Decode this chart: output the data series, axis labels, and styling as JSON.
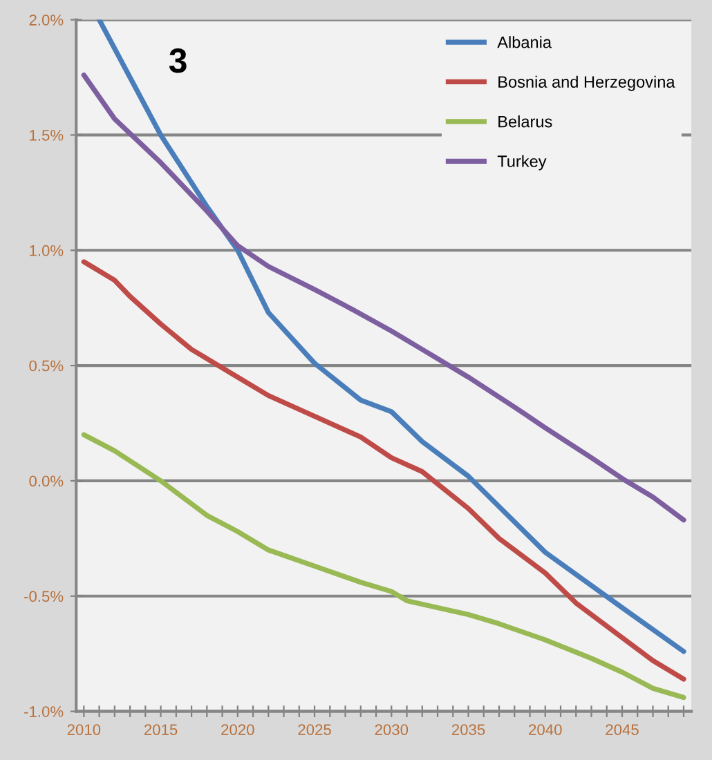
{
  "chart_data": {
    "type": "line",
    "annotations": [
      "3"
    ],
    "series": [
      {
        "name": "Albania",
        "color": "#4a7ebb",
        "x": [
          2011,
          2015,
          2018,
          2020,
          2022,
          2025,
          2028,
          2030,
          2032,
          2035,
          2040,
          2045,
          2049
        ],
        "values": [
          2.0,
          1.5,
          1.19,
          1.0,
          0.73,
          0.51,
          0.35,
          0.3,
          0.17,
          0.02,
          -0.31,
          -0.55,
          -0.74
        ]
      },
      {
        "name": "Bosnia and Herzegovina",
        "color": "#be4b48",
        "x": [
          2010,
          2012,
          2013,
          2015,
          2017,
          2020,
          2022,
          2025,
          2028,
          2030,
          2032,
          2035,
          2037,
          2040,
          2042,
          2045,
          2047,
          2049
        ],
        "values": [
          0.95,
          0.87,
          0.8,
          0.68,
          0.57,
          0.45,
          0.37,
          0.28,
          0.19,
          0.1,
          0.04,
          -0.12,
          -0.25,
          -0.4,
          -0.53,
          -0.68,
          -0.78,
          -0.86
        ]
      },
      {
        "name": "Belarus",
        "color": "#98b954",
        "x": [
          2010,
          2012,
          2015,
          2018,
          2020,
          2022,
          2025,
          2028,
          2030,
          2031,
          2035,
          2037,
          2040,
          2043,
          2045,
          2047,
          2049
        ],
        "values": [
          0.2,
          0.13,
          0.0,
          -0.15,
          -0.22,
          -0.3,
          -0.37,
          -0.44,
          -0.48,
          -0.52,
          -0.58,
          -0.62,
          -0.69,
          -0.77,
          -0.83,
          -0.9,
          -0.94
        ]
      },
      {
        "name": "Turkey",
        "color": "#7d5fa0",
        "x": [
          2010,
          2012,
          2015,
          2018,
          2020,
          2022,
          2025,
          2027,
          2030,
          2032,
          2035,
          2038,
          2040,
          2043,
          2045,
          2047,
          2049
        ],
        "values": [
          1.76,
          1.57,
          1.38,
          1.17,
          1.02,
          0.93,
          0.83,
          0.76,
          0.65,
          0.57,
          0.45,
          0.32,
          0.23,
          0.1,
          0.01,
          -0.07,
          -0.17
        ]
      }
    ],
    "xlim": [
      2009.5,
      2049.5
    ],
    "xticks": [
      2010,
      {
        "value": 2011,
        "label": null
      },
      {
        "value": 2012,
        "label": null
      },
      {
        "value": 2013,
        "label": null
      },
      {
        "value": 2014,
        "label": null
      },
      2015,
      {
        "value": 2016,
        "label": null
      },
      {
        "value": 2017,
        "label": null
      },
      {
        "value": 2018,
        "label": null
      },
      {
        "value": 2019,
        "label": null
      },
      2020,
      {
        "value": 2021,
        "label": null
      },
      {
        "value": 2022,
        "label": null
      },
      {
        "value": 2023,
        "label": null
      },
      {
        "value": 2024,
        "label": null
      },
      2025,
      {
        "value": 2026,
        "label": null
      },
      {
        "value": 2027,
        "label": null
      },
      {
        "value": 2028,
        "label": null
      },
      {
        "value": 2029,
        "label": null
      },
      2030,
      {
        "value": 2031,
        "label": null
      },
      {
        "value": 2032,
        "label": null
      },
      {
        "value": 2033,
        "label": null
      },
      {
        "value": 2034,
        "label": null
      },
      2035,
      {
        "value": 2036,
        "label": null
      },
      {
        "value": 2037,
        "label": null
      },
      {
        "value": 2038,
        "label": null
      },
      {
        "value": 2039,
        "label": null
      },
      2040,
      {
        "value": 2041,
        "label": null
      },
      {
        "value": 2042,
        "label": null
      },
      {
        "value": 2043,
        "label": null
      },
      {
        "value": 2044,
        "label": null
      },
      2045,
      {
        "value": 2046,
        "label": null
      },
      {
        "value": 2047,
        "label": null
      },
      {
        "value": 2048,
        "label": null
      },
      {
        "value": 2049,
        "label": null
      }
    ],
    "ylim": [
      -1.0,
      2.0
    ],
    "yticks": [
      {
        "value": -1.0,
        "label": "-1.0%"
      },
      {
        "value": -0.5,
        "label": "-0.5%"
      },
      {
        "value": 0.0,
        "label": "0.0%"
      },
      {
        "value": 0.5,
        "label": "0.5%"
      },
      {
        "value": 1.0,
        "label": "1.0%"
      },
      {
        "value": 1.5,
        "label": "1.5%"
      },
      {
        "value": 2.0,
        "label": "2.0%"
      }
    ],
    "grid": "y",
    "legend": "top right",
    "line_style": "solid",
    "marker": "none"
  }
}
